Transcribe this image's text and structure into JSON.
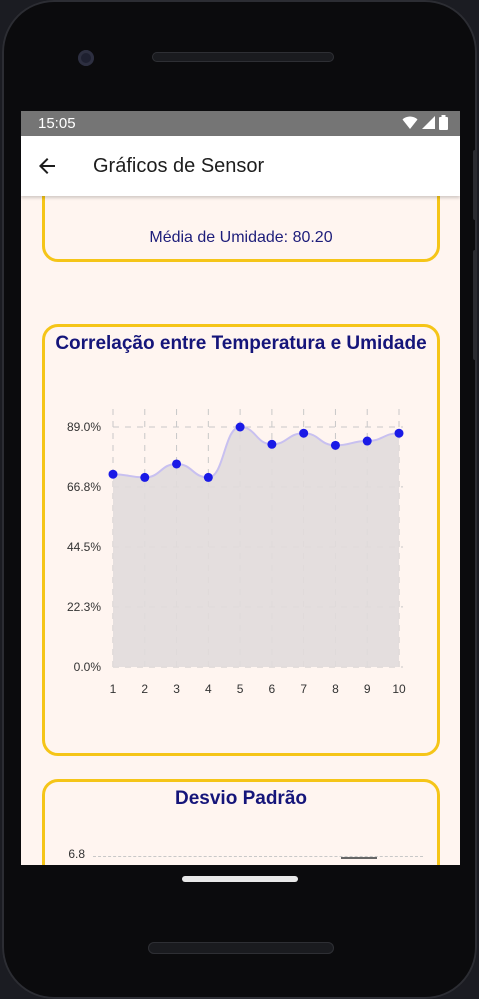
{
  "status_bar": {
    "time": "15:05",
    "wifi_icon": "wifi-icon",
    "signal_icon": "signal-icon",
    "battery_icon": "battery-icon"
  },
  "app_bar": {
    "back_icon": "arrow-back-icon",
    "title": "Gráficos de Sensor"
  },
  "umidade_card": {
    "x_ticks": [
      "1",
      "2",
      "3",
      "4",
      "5",
      "6",
      "7",
      "8",
      "9",
      "10"
    ],
    "media_text": "Média de Umidade: 80.20"
  },
  "correlacao_card": {
    "title": "Correlação entre Temperatura e Umidade"
  },
  "desvio_card": {
    "title": "Desvio Padrão",
    "y_tick_visible": "6.8"
  },
  "colors": {
    "card_border": "#f5c518",
    "title": "#15157a",
    "point": "#1a1ae6",
    "line": "#c8c0f0",
    "area": "#e1dcdc",
    "background": "#fff5f0"
  },
  "chart_data": {
    "type": "area",
    "title": "Correlação entre Temperatura e Umidade",
    "x": [
      1,
      2,
      3,
      4,
      5,
      6,
      7,
      8,
      9,
      10
    ],
    "x_tick_labels": [
      "1",
      "2",
      "3",
      "4",
      "5",
      "6",
      "7",
      "8",
      "9",
      "10"
    ],
    "y_tick_labels": [
      "89.0%",
      "66.8%",
      "44.5%",
      "22.3%",
      "0.0%"
    ],
    "y_ticks": [
      89.0,
      66.8,
      44.5,
      22.3,
      0.0
    ],
    "ylim": [
      0,
      89.0
    ],
    "values": [
      71.5,
      70.3,
      75.3,
      70.3,
      89.0,
      82.6,
      86.7,
      82.2,
      83.8,
      86.7
    ],
    "grid": true,
    "curve": "smooth",
    "points_visible": true
  }
}
